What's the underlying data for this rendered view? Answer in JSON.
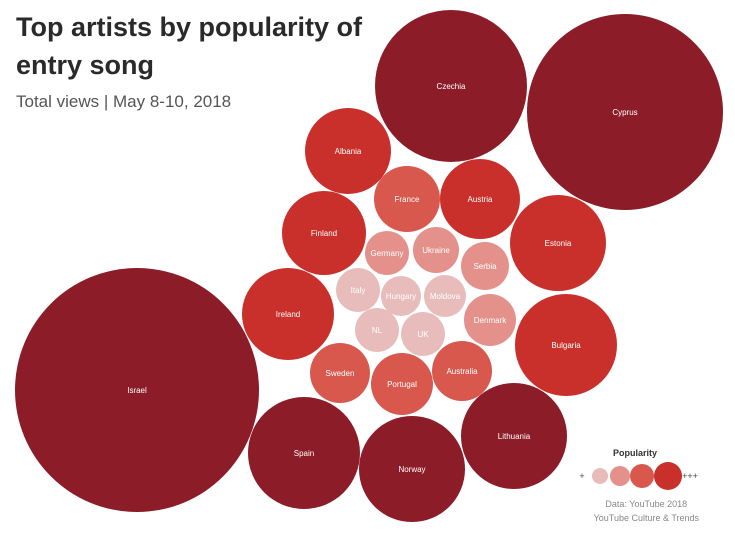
{
  "chart_data": {
    "type": "bubble",
    "title": "Top artists by popularity of entry song",
    "subtitle": "Total views | May 8-10, 2018",
    "source_line1": "Data: YouTube 2018",
    "source_line2": "YouTube Culture & Trends",
    "legend": {
      "title": "Popularity",
      "low_label": "+",
      "high_label": "+++"
    },
    "colors": {
      "1": "#e8bcbb",
      "2": "#e4908b",
      "3": "#d9584e",
      "4": "#c9302b",
      "5": "#8c1c28"
    },
    "items": [
      {
        "name": "Israel",
        "level": 5
      },
      {
        "name": "Cyprus",
        "level": 5
      },
      {
        "name": "Czechia",
        "level": 5
      },
      {
        "name": "Norway",
        "level": 5
      },
      {
        "name": "Spain",
        "level": 5
      },
      {
        "name": "Lithuania",
        "level": 5
      },
      {
        "name": "Bulgaria",
        "level": 4
      },
      {
        "name": "Estonia",
        "level": 4
      },
      {
        "name": "Ireland",
        "level": 4
      },
      {
        "name": "Finland",
        "level": 4
      },
      {
        "name": "Albania",
        "level": 4
      },
      {
        "name": "Austria",
        "level": 4
      },
      {
        "name": "France",
        "level": 3
      },
      {
        "name": "Australia",
        "level": 3
      },
      {
        "name": "Portugal",
        "level": 3
      },
      {
        "name": "Sweden",
        "level": 3
      },
      {
        "name": "Denmark",
        "level": 2
      },
      {
        "name": "Serbia",
        "level": 2
      },
      {
        "name": "Germany",
        "level": 2
      },
      {
        "name": "Ukraine",
        "level": 2
      },
      {
        "name": "Italy",
        "level": 1
      },
      {
        "name": "Hungary",
        "level": 1
      },
      {
        "name": "Moldova",
        "level": 1
      },
      {
        "name": "NL",
        "level": 1
      },
      {
        "name": "UK",
        "level": 1
      }
    ]
  }
}
